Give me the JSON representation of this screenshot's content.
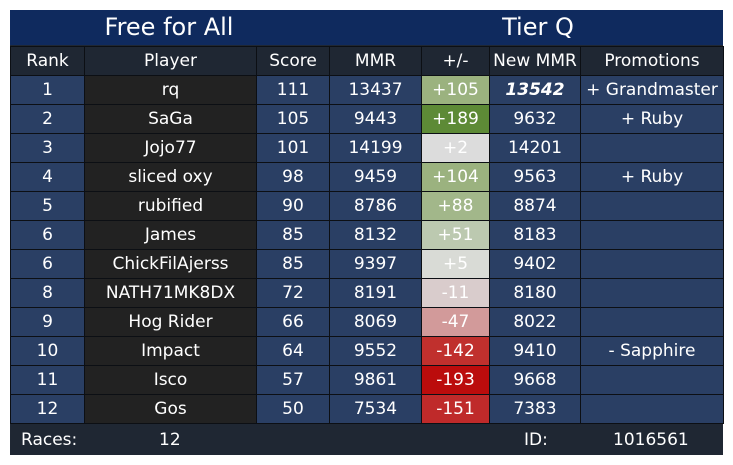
{
  "header": {
    "mode_title": "Free for All",
    "tier_title": "Tier Q"
  },
  "columns": [
    "Rank",
    "Player",
    "Score",
    "MMR",
    "+/-",
    "New MMR",
    "Promotions"
  ],
  "rows": [
    {
      "rank": "1",
      "player": "rq",
      "score": "111",
      "mmr": "13437",
      "delta": "+105",
      "new_mmr": "13542",
      "promotion": "+ Grandmaster",
      "delta_color": "#9bb27f",
      "new_highlight": true,
      "promo_type": "up"
    },
    {
      "rank": "2",
      "player": "SaGa",
      "score": "105",
      "mmr": "9443",
      "delta": "+189",
      "new_mmr": "9632",
      "promotion": "+ Ruby",
      "delta_color": "#5d8a36",
      "new_highlight": false,
      "promo_type": "up"
    },
    {
      "rank": "3",
      "player": "Jojo77",
      "score": "101",
      "mmr": "14199",
      "delta": "+2",
      "new_mmr": "14201",
      "promotion": "",
      "delta_color": "#dcdcdc",
      "new_highlight": false,
      "promo_type": ""
    },
    {
      "rank": "4",
      "player": "sliced oxy",
      "score": "98",
      "mmr": "9459",
      "delta": "+104",
      "new_mmr": "9563",
      "promotion": "+ Ruby",
      "delta_color": "#9bb27f",
      "new_highlight": false,
      "promo_type": "up"
    },
    {
      "rank": "5",
      "player": "rubified",
      "score": "90",
      "mmr": "8786",
      "delta": "+88",
      "new_mmr": "8874",
      "promotion": "",
      "delta_color": "#a2b78a",
      "new_highlight": false,
      "promo_type": ""
    },
    {
      "rank": "6",
      "player": "James",
      "score": "85",
      "mmr": "8132",
      "delta": "+51",
      "new_mmr": "8183",
      "promotion": "",
      "delta_color": "#bcc9b0",
      "new_highlight": false,
      "promo_type": ""
    },
    {
      "rank": "6",
      "player": "ChickFilAjerss",
      "score": "85",
      "mmr": "9397",
      "delta": "+5",
      "new_mmr": "9402",
      "promotion": "",
      "delta_color": "#d9dbd6",
      "new_highlight": false,
      "promo_type": ""
    },
    {
      "rank": "8",
      "player": "NATH71MK8DX",
      "score": "72",
      "mmr": "8191",
      "delta": "-11",
      "new_mmr": "8180",
      "promotion": "",
      "delta_color": "#d9cccc",
      "new_highlight": false,
      "promo_type": ""
    },
    {
      "rank": "9",
      "player": "Hog Rider",
      "score": "66",
      "mmr": "8069",
      "delta": "-47",
      "new_mmr": "8022",
      "promotion": "",
      "delta_color": "#d29a9a",
      "new_highlight": false,
      "promo_type": ""
    },
    {
      "rank": "10",
      "player": "Impact",
      "score": "64",
      "mmr": "9552",
      "delta": "-142",
      "new_mmr": "9410",
      "promotion": "- Sapphire",
      "delta_color": "#c0302d",
      "new_highlight": false,
      "promo_type": "down"
    },
    {
      "rank": "11",
      "player": "Isco",
      "score": "57",
      "mmr": "9861",
      "delta": "-193",
      "new_mmr": "9668",
      "promotion": "",
      "delta_color": "#bb0c0c",
      "new_highlight": false,
      "promo_type": ""
    },
    {
      "rank": "12",
      "player": "Gos",
      "score": "50",
      "mmr": "7534",
      "delta": "-151",
      "new_mmr": "7383",
      "promotion": "",
      "delta_color": "#bf2a2a",
      "new_highlight": false,
      "promo_type": ""
    }
  ],
  "footer": {
    "races_label": "Races:",
    "races_value": "12",
    "id_label": "ID:",
    "id_value": "1016561"
  }
}
